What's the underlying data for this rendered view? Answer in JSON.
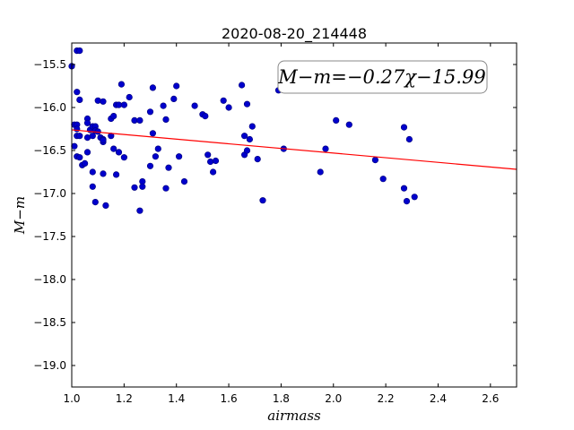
{
  "chart_data": {
    "type": "scatter",
    "title": "2020-08-20_214448",
    "xlabel": "airmass",
    "ylabel": "M−m",
    "xlim": [
      1.0,
      2.7
    ],
    "ylim": [
      -19.25,
      -15.25
    ],
    "y_inverted": true,
    "grid": false,
    "xticks": [
      "1.0",
      "1.2",
      "1.4",
      "1.6",
      "1.8",
      "2.0",
      "2.2",
      "2.4",
      "2.6"
    ],
    "xtick_values": [
      1.0,
      1.2,
      1.4,
      1.6,
      1.8,
      2.0,
      2.2,
      2.4,
      2.6
    ],
    "yticks": [
      "−15.5",
      "−16.0",
      "−16.5",
      "−17.0",
      "−17.5",
      "−18.0",
      "−18.5",
      "−19.0"
    ],
    "ytick_values": [
      -15.5,
      -16.0,
      -16.5,
      -17.0,
      -17.5,
      -18.0,
      -18.5,
      -19.0
    ],
    "annotation": "M−m=−0.27χ−15.99",
    "fit": {
      "slope": -0.27,
      "intercept": -15.99,
      "color": "#ff0000"
    },
    "point_color": "#0000cc",
    "points": [
      [
        1.0,
        -15.52
      ],
      [
        1.02,
        -15.34
      ],
      [
        1.03,
        -15.34
      ],
      [
        1.02,
        -15.82
      ],
      [
        1.03,
        -15.91
      ],
      [
        1.01,
        -16.2
      ],
      [
        1.02,
        -16.2
      ],
      [
        1.02,
        -16.25
      ],
      [
        1.02,
        -16.33
      ],
      [
        1.03,
        -16.33
      ],
      [
        1.01,
        -16.45
      ],
      [
        1.02,
        -16.57
      ],
      [
        1.03,
        -16.58
      ],
      [
        1.04,
        -16.67
      ],
      [
        1.05,
        -16.65
      ],
      [
        1.06,
        -16.13
      ],
      [
        1.06,
        -16.18
      ],
      [
        1.06,
        -16.35
      ],
      [
        1.06,
        -16.52
      ],
      [
        1.07,
        -16.26
      ],
      [
        1.08,
        -16.22
      ],
      [
        1.08,
        -16.33
      ],
      [
        1.08,
        -16.75
      ],
      [
        1.08,
        -16.92
      ],
      [
        1.09,
        -17.1
      ],
      [
        1.09,
        -16.22
      ],
      [
        1.09,
        -16.27
      ],
      [
        1.1,
        -16.28
      ],
      [
        1.1,
        -15.92
      ],
      [
        1.11,
        -16.35
      ],
      [
        1.12,
        -16.37
      ],
      [
        1.12,
        -16.4
      ],
      [
        1.12,
        -15.93
      ],
      [
        1.12,
        -16.38
      ],
      [
        1.12,
        -16.77
      ],
      [
        1.13,
        -17.14
      ],
      [
        1.15,
        -16.13
      ],
      [
        1.15,
        -16.33
      ],
      [
        1.16,
        -16.48
      ],
      [
        1.16,
        -16.1
      ],
      [
        1.17,
        -15.97
      ],
      [
        1.17,
        -16.78
      ],
      [
        1.18,
        -15.97
      ],
      [
        1.18,
        -16.52
      ],
      [
        1.19,
        -15.73
      ],
      [
        1.2,
        -15.97
      ],
      [
        1.2,
        -16.58
      ],
      [
        1.22,
        -15.88
      ],
      [
        1.24,
        -16.15
      ],
      [
        1.24,
        -16.93
      ],
      [
        1.26,
        -16.15
      ],
      [
        1.26,
        -17.2
      ],
      [
        1.27,
        -16.86
      ],
      [
        1.27,
        -16.92
      ],
      [
        1.3,
        -16.68
      ],
      [
        1.3,
        -16.05
      ],
      [
        1.31,
        -15.77
      ],
      [
        1.31,
        -16.3
      ],
      [
        1.32,
        -16.57
      ],
      [
        1.33,
        -16.48
      ],
      [
        1.35,
        -15.98
      ],
      [
        1.36,
        -16.14
      ],
      [
        1.36,
        -16.94
      ],
      [
        1.37,
        -16.7
      ],
      [
        1.39,
        -15.9
      ],
      [
        1.4,
        -15.75
      ],
      [
        1.41,
        -16.57
      ],
      [
        1.43,
        -16.86
      ],
      [
        1.47,
        -15.98
      ],
      [
        1.5,
        -16.08
      ],
      [
        1.51,
        -16.1
      ],
      [
        1.52,
        -16.55
      ],
      [
        1.53,
        -16.63
      ],
      [
        1.54,
        -16.75
      ],
      [
        1.55,
        -16.62
      ],
      [
        1.58,
        -15.92
      ],
      [
        1.6,
        -16.0
      ],
      [
        1.65,
        -15.74
      ],
      [
        1.66,
        -16.33
      ],
      [
        1.66,
        -16.55
      ],
      [
        1.67,
        -16.5
      ],
      [
        1.67,
        -15.96
      ],
      [
        1.68,
        -16.37
      ],
      [
        1.69,
        -16.22
      ],
      [
        1.71,
        -16.6
      ],
      [
        1.73,
        -17.08
      ],
      [
        1.79,
        -15.8
      ],
      [
        1.81,
        -16.48
      ],
      [
        1.95,
        -16.75
      ],
      [
        1.97,
        -16.48
      ],
      [
        2.01,
        -16.15
      ],
      [
        2.06,
        -16.2
      ],
      [
        2.16,
        -16.61
      ],
      [
        2.19,
        -16.83
      ],
      [
        2.27,
        -16.23
      ],
      [
        2.27,
        -16.94
      ],
      [
        2.28,
        -17.09
      ],
      [
        2.29,
        -16.37
      ],
      [
        2.31,
        -17.04
      ]
    ]
  }
}
